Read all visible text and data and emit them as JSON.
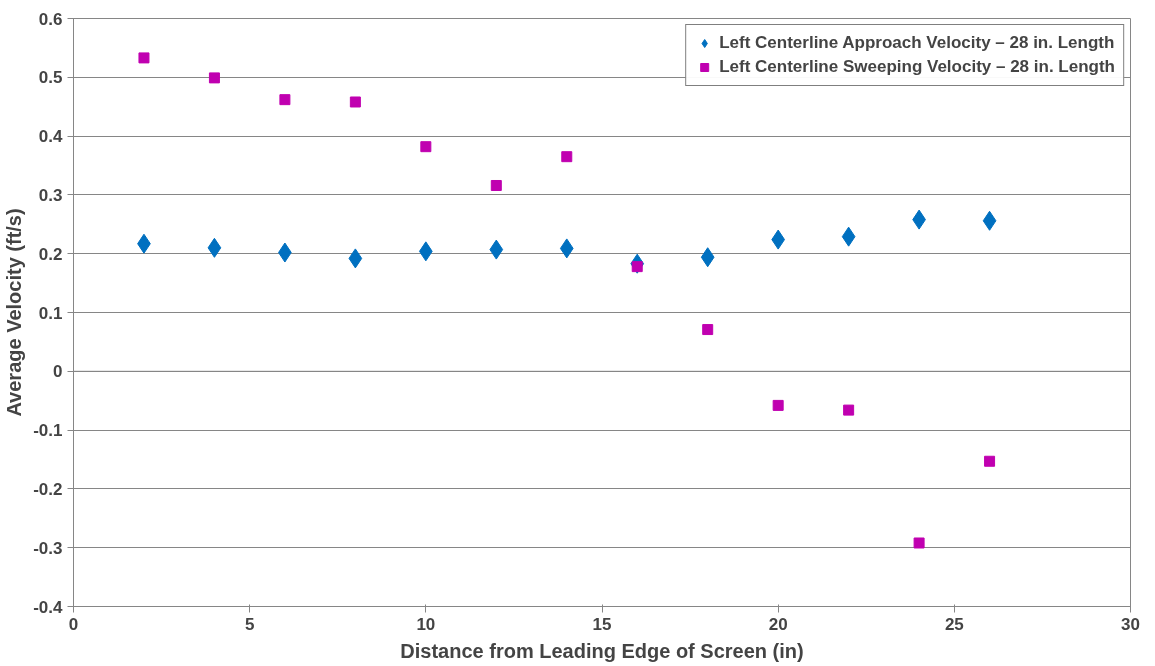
{
  "chart_data": {
    "type": "scatter",
    "xlabel": "Distance from Leading Edge of Screen (in)",
    "ylabel": "Average Velocity (ft/s)",
    "x": [
      2,
      4,
      6,
      8,
      10,
      12,
      14,
      16,
      18,
      20,
      22,
      24,
      26
    ],
    "series": [
      {
        "name": "Left Centerline Approach Velocity – 28 in. Length",
        "color": "#0070c0",
        "marker": "diamond",
        "values": [
          0.217,
          0.21,
          0.202,
          0.192,
          0.204,
          0.207,
          0.209,
          0.183,
          0.194,
          0.224,
          0.229,
          0.258,
          0.256
        ]
      },
      {
        "name": "Left Centerline Sweeping Velocity – 28 in. Length",
        "color": "#c000b0",
        "marker": "square",
        "values": [
          0.533,
          0.499,
          0.462,
          0.458,
          0.382,
          0.316,
          0.365,
          0.178,
          0.071,
          -0.058,
          -0.066,
          -0.292,
          -0.153
        ]
      }
    ],
    "xlim": [
      0,
      30
    ],
    "xticks": [
      0,
      5,
      10,
      15,
      20,
      25,
      30
    ],
    "ylim": [
      -0.4,
      0.6
    ],
    "yticks": [
      -0.4,
      -0.3,
      -0.2,
      -0.1,
      0,
      0.1,
      0.2,
      0.3,
      0.4,
      0.5,
      0.6
    ],
    "grid": "y",
    "legend": "top right"
  }
}
